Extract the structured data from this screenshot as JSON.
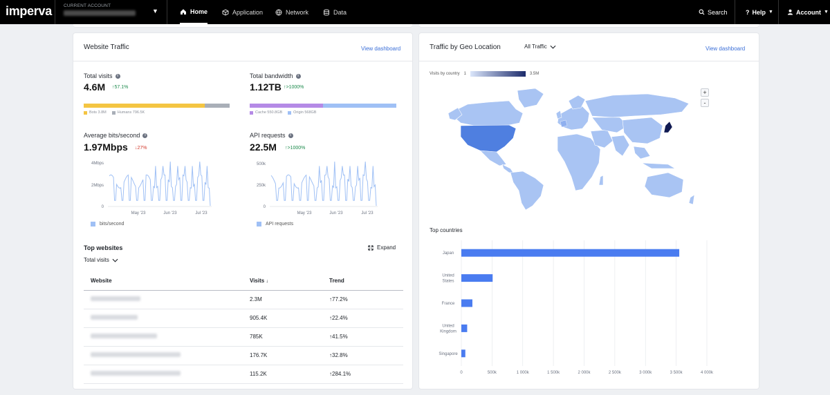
{
  "nav": {
    "logo": "imperva",
    "account_label": "CURRENT ACCOUNT",
    "tabs": [
      {
        "label": "Home",
        "icon": "home-icon",
        "active": true
      },
      {
        "label": "Application",
        "icon": "cube-icon",
        "active": false
      },
      {
        "label": "Network",
        "icon": "globe-icon",
        "active": false
      },
      {
        "label": "Data",
        "icon": "database-icon",
        "active": false
      }
    ],
    "search_label": "Search",
    "help_label": "Help",
    "account_menu_label": "Account"
  },
  "website_traffic": {
    "title": "Website Traffic",
    "view_dashboard": "View dashboard",
    "total_visits": {
      "label": "Total visits",
      "value": "4.6M",
      "delta": "↑57.1%",
      "bots_share": 0.83,
      "legend": [
        {
          "label": "Bots 3.8M",
          "color": "#f4c542"
        },
        {
          "label": "Humans 796.5K",
          "color": "#a9afb8"
        }
      ]
    },
    "total_bandwidth": {
      "label": "Total bandwidth",
      "value": "1.12TB",
      "delta": "↑>1000%",
      "cache_share": 0.5,
      "legend": [
        {
          "label": "Cache 550.8GB",
          "color": "#b58ae6"
        },
        {
          "label": "Origin 568GB",
          "color": "#9fc0f5"
        }
      ]
    },
    "avg_bits": {
      "label": "Average bits/second",
      "value": "1.97Mbps",
      "delta": "↓27%",
      "y_ticks": [
        "4Mbps",
        "2Mbps",
        "0"
      ],
      "x_ticks": [
        "May '23",
        "Jun '23",
        "Jul '23"
      ],
      "legend": "bits/second"
    },
    "api_requests": {
      "label": "API requests",
      "value": "22.5M",
      "delta": "↑>1000%",
      "y_ticks": [
        "500k",
        "250k",
        "0"
      ],
      "x_ticks": [
        "May '23",
        "Jun '23",
        "Jul '23"
      ],
      "legend": "API requests"
    },
    "top_websites": {
      "title": "Top websites",
      "dropdown": "Total visits",
      "expand": "Expand",
      "columns": [
        "Website",
        "Visits",
        "Trend"
      ],
      "rows": [
        {
          "visits": "2.3M",
          "trend": "↑77.2%"
        },
        {
          "visits": "905.4K",
          "trend": "↑22.4%"
        },
        {
          "visits": "785K",
          "trend": "↑41.5%"
        },
        {
          "visits": "176.7K",
          "trend": "↑32.8%"
        },
        {
          "visits": "115.2K",
          "trend": "↑284.1%"
        }
      ]
    }
  },
  "geo": {
    "title": "Traffic by Geo Location",
    "filter": "All Traffic",
    "view_dashboard": "View dashboard",
    "legend_label": "Visits by country",
    "legend_min": "1",
    "legend_max": "3.5M",
    "zoom_in": "+",
    "zoom_out": "-",
    "top_countries_title": "Top countries"
  },
  "chart_data": {
    "type": "bar",
    "orientation": "horizontal",
    "categories": [
      "Japan",
      "United States",
      "France",
      "United Kingdom",
      "Singapore"
    ],
    "category_labels": [
      [
        "Japan"
      ],
      [
        "United",
        "States"
      ],
      [
        "France"
      ],
      [
        "United",
        "Kingdom"
      ],
      [
        "Singapore"
      ]
    ],
    "values": [
      3550000,
      510000,
      180000,
      95000,
      65000
    ],
    "x_ticks": [
      "0",
      "500k",
      "1 000k",
      "1 500k",
      "2 000k",
      "2 500k",
      "3 000k",
      "3 500k",
      "4 000k"
    ],
    "xlim": [
      0,
      4000000
    ],
    "bar_color": "#4a7cf0",
    "grid": true
  }
}
